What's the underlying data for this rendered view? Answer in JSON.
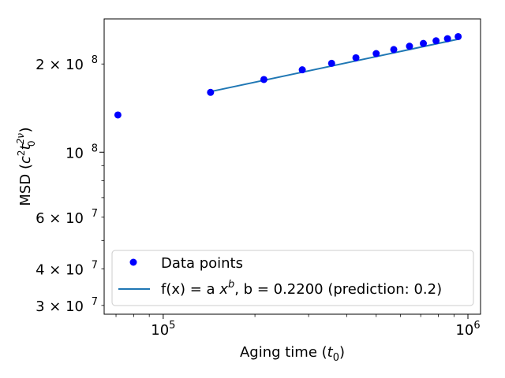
{
  "chart_data": {
    "type": "scatter",
    "x_scale": "log",
    "y_scale": "log",
    "xlabel": "Aging time (t_0)",
    "ylabel": "MSD (c^2 t_0^{2ν})",
    "xlim": [
      64000,
      1100000
    ],
    "ylim": [
      28000000,
      285000000
    ],
    "grid": false,
    "legend_position": "lower-right",
    "x_major_ticks": [
      {
        "value": 100000,
        "mantissa": "10",
        "exponent": "5"
      },
      {
        "value": 1000000,
        "mantissa": "10",
        "exponent": "6"
      }
    ],
    "y_ticks": [
      {
        "value": 30000000,
        "mantissa": "3 × 10",
        "exponent": "7"
      },
      {
        "value": 40000000,
        "mantissa": "4 × 10",
        "exponent": "7"
      },
      {
        "value": 60000000,
        "mantissa": "6 × 10",
        "exponent": "7"
      },
      {
        "value": 100000000,
        "mantissa": "10",
        "exponent": "8"
      },
      {
        "value": 200000000,
        "mantissa": "2 × 10",
        "exponent": "8"
      }
    ],
    "series": [
      {
        "name": "Data points",
        "kind": "scatter",
        "color": "#0000ff",
        "x": [
          71000,
          143000,
          214000,
          286000,
          357000,
          429000,
          500000,
          571000,
          643000,
          714000,
          786000,
          857000,
          929000
        ],
        "y": [
          134000000,
          160000000,
          177000000,
          191000000,
          201000000,
          210000000,
          217000000,
          224000000,
          230000000,
          235000000,
          240000000,
          244000000,
          248000000
        ]
      },
      {
        "name": "f(x) = a x^b, b = 0.2200 (prediction: 0.2)",
        "kind": "line",
        "color": "#1f77b4",
        "x": [
          143000,
          929000
        ],
        "y": [
          161000000,
          243000000
        ]
      }
    ]
  }
}
